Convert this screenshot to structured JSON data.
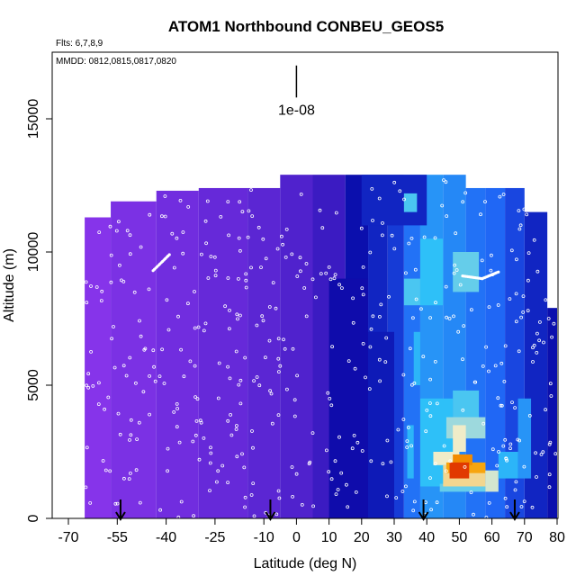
{
  "chart_data": {
    "type": "heatmap",
    "title": "ATOM1 Northbound CONBEU_GEOS5",
    "subtitle_flights": "Flts: 6,7,8,9",
    "subtitle_dates": "MMDD: 0812,0815,0817,0820",
    "xlabel": "Latitude (deg N)",
    "ylabel": "Altitude (m)",
    "xlim": [
      -70,
      80
    ],
    "ylim": [
      0,
      17500
    ],
    "x_ticks": [
      -70,
      -55,
      -40,
      -25,
      -10,
      0,
      10,
      20,
      30,
      40,
      50,
      60,
      70,
      80
    ],
    "x_tick_labels": [
      "-70",
      "-55",
      "-40",
      "-25",
      "-10",
      "0",
      "10",
      "20",
      "30",
      "40",
      "50",
      "60",
      "70",
      "80"
    ],
    "y_ticks": [
      0,
      5000,
      10000,
      15000
    ],
    "y_tick_labels": [
      "0",
      "5000",
      "10000",
      "15000"
    ],
    "scale_bar": {
      "label": "1e-08",
      "lat": 0,
      "alt_top": 17000,
      "alt_bottom": 15800
    },
    "arrow_latitudes": [
      -54,
      -8,
      39,
      67
    ],
    "colors": {
      "background_low": "#9138f0",
      "dark_blue": "#0a0aa8",
      "mid_blue": "#1e5cf5",
      "light_blue": "#2ec0f8",
      "pale": "#f0ecc8",
      "orange": "#f8a000",
      "red": "#d81000",
      "points": "#ffffff"
    },
    "regions": [
      {
        "lat": [
          -65,
          -57
        ],
        "alt": [
          0,
          11300
        ],
        "level": 0.02
      },
      {
        "lat": [
          -57,
          -43
        ],
        "alt": [
          0,
          11900
        ],
        "level": 0.04
      },
      {
        "lat": [
          -43,
          -30
        ],
        "alt": [
          0,
          12300
        ],
        "level": 0.06
      },
      {
        "lat": [
          -30,
          -15
        ],
        "alt": [
          0,
          12400
        ],
        "level": 0.08
      },
      {
        "lat": [
          -15,
          -5
        ],
        "alt": [
          0,
          12400
        ],
        "level": 0.1
      },
      {
        "lat": [
          -5,
          5
        ],
        "alt": [
          0,
          12900
        ],
        "level": 0.12
      },
      {
        "lat": [
          5,
          15
        ],
        "alt": [
          0,
          12900
        ],
        "level": 0.16
      },
      {
        "lat": [
          15,
          22
        ],
        "alt": [
          0,
          12900
        ],
        "level": 0.26
      },
      {
        "lat": [
          22,
          28
        ],
        "alt": [
          0,
          12900
        ],
        "level": 0.3
      },
      {
        "lat": [
          28,
          33
        ],
        "alt": [
          0,
          12900
        ],
        "level": 0.34
      },
      {
        "lat": [
          33,
          38
        ],
        "alt": [
          0,
          12900
        ],
        "level": 0.44
      },
      {
        "lat": [
          38,
          45
        ],
        "alt": [
          0,
          12900
        ],
        "level": 0.5
      },
      {
        "lat": [
          45,
          52
        ],
        "alt": [
          0,
          12900
        ],
        "level": 0.48
      },
      {
        "lat": [
          52,
          58
        ],
        "alt": [
          0,
          12400
        ],
        "level": 0.44
      },
      {
        "lat": [
          58,
          64
        ],
        "alt": [
          0,
          12400
        ],
        "level": 0.42
      },
      {
        "lat": [
          64,
          70
        ],
        "alt": [
          0,
          12400
        ],
        "level": 0.36
      },
      {
        "lat": [
          70,
          77
        ],
        "alt": [
          0,
          11500
        ],
        "level": 0.3
      },
      {
        "lat": [
          77,
          80
        ],
        "alt": [
          0,
          7900
        ],
        "level": 0.26
      },
      {
        "lat": [
          10,
          22
        ],
        "alt": [
          0,
          9000
        ],
        "level": 0.24
      },
      {
        "lat": [
          22,
          30
        ],
        "alt": [
          0,
          7000
        ],
        "level": 0.28
      },
      {
        "lat": [
          20,
          40
        ],
        "alt": [
          11000,
          12900
        ],
        "level": 0.3
      },
      {
        "lat": [
          33,
          37
        ],
        "alt": [
          11500,
          12200
        ],
        "level": 0.6
      },
      {
        "lat": [
          33,
          38
        ],
        "alt": [
          8000,
          9000
        ],
        "level": 0.6
      },
      {
        "lat": [
          36,
          38
        ],
        "alt": [
          5000,
          7000
        ],
        "level": 0.56
      },
      {
        "lat": [
          34,
          36
        ],
        "alt": [
          1500,
          3500
        ],
        "level": 0.56
      },
      {
        "lat": [
          38,
          45
        ],
        "alt": [
          8000,
          10500
        ],
        "level": 0.58
      },
      {
        "lat": [
          48,
          56
        ],
        "alt": [
          8500,
          10000
        ],
        "level": 0.62
      },
      {
        "lat": [
          38,
          48
        ],
        "alt": [
          1200,
          4500
        ],
        "level": 0.58
      },
      {
        "lat": [
          48,
          56
        ],
        "alt": [
          3500,
          4800
        ],
        "level": 0.6
      },
      {
        "lat": [
          44,
          58
        ],
        "alt": [
          1000,
          1300
        ],
        "level": 0.62
      },
      {
        "lat": [
          46,
          58
        ],
        "alt": [
          3000,
          3800
        ],
        "level": 0.66
      },
      {
        "lat": [
          42,
          50
        ],
        "alt": [
          2000,
          2500
        ],
        "level": 0.72
      },
      {
        "lat": [
          45,
          58
        ],
        "alt": [
          1200,
          2000
        ],
        "level": 0.76
      },
      {
        "lat": [
          48,
          52
        ],
        "alt": [
          2500,
          3500
        ],
        "level": 0.72
      },
      {
        "lat": [
          46,
          58
        ],
        "alt": [
          1700,
          2100
        ],
        "level": 0.85
      },
      {
        "lat": [
          48,
          54
        ],
        "alt": [
          2000,
          2400
        ],
        "level": 0.88
      },
      {
        "lat": [
          47,
          53
        ],
        "alt": [
          1500,
          2100
        ],
        "level": 0.96
      },
      {
        "lat": [
          58,
          62
        ],
        "alt": [
          1000,
          1800
        ],
        "level": 0.7
      },
      {
        "lat": [
          62,
          68
        ],
        "alt": [
          1500,
          2500
        ],
        "level": 0.56
      },
      {
        "lat": [
          68,
          72
        ],
        "alt": [
          1500,
          4500
        ],
        "level": 0.5
      }
    ]
  }
}
